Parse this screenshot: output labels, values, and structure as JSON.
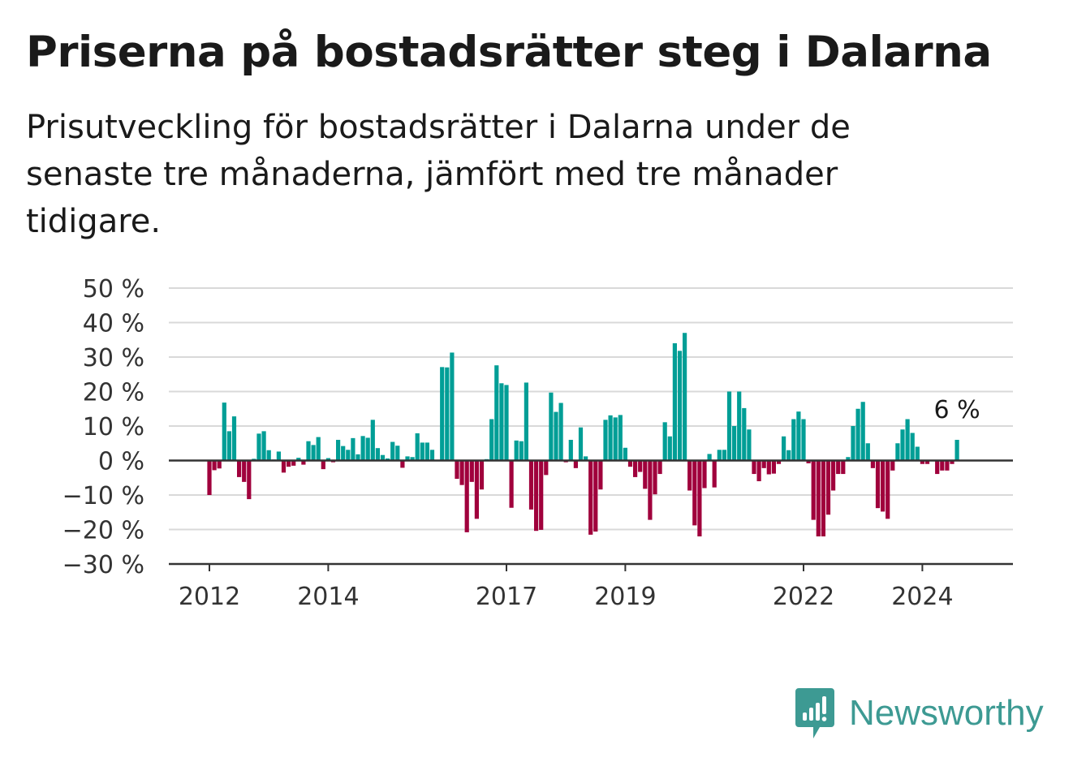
{
  "header": {
    "title": "Priserna på bostadsrätter steg i Dalarna",
    "subtitle": "Prisutveckling för bostadsrätter i Dalarna under de senaste tre månaderna, jämfört med tre månader tidigare."
  },
  "brand": {
    "name": "Newsworthy",
    "icon": "newsworthy-logo-icon",
    "color": "#3d9a93"
  },
  "colors": {
    "positive": "#009e96",
    "negative": "#a0003c",
    "grid": "#d9d9d9",
    "axis": "#333333"
  },
  "chart_data": {
    "type": "bar",
    "ylim": [
      -30,
      50
    ],
    "y_ticks": [
      50,
      40,
      30,
      20,
      10,
      0,
      -10,
      -20,
      -30
    ],
    "y_tick_labels": [
      "50 %",
      "40 %",
      "30 %",
      "20 %",
      "10 %",
      "0 %",
      "−10 %",
      "−20 %",
      "−30 %"
    ],
    "x_tick_labels": [
      "2012",
      "2014",
      "2017",
      "2019",
      "2022",
      "2024"
    ],
    "x_tick_index": [
      0,
      24,
      60,
      84,
      120,
      144
    ],
    "grid": true,
    "last_value_label": "6 %",
    "values": [
      -10,
      -2.8,
      -2.3,
      16.8,
      8.5,
      12.8,
      -4.8,
      -6.2,
      -11.2,
      0.5,
      7.8,
      8.5,
      3.0,
      0.3,
      2.6,
      -3.5,
      -1.8,
      -1.5,
      0.8,
      -1.2,
      5.6,
      4.5,
      6.8,
      -2.5,
      0.7,
      -0.5,
      6.0,
      4.2,
      3.1,
      6.5,
      1.8,
      7.1,
      6.6,
      11.8,
      3.6,
      1.6,
      0.6,
      5.4,
      4.3,
      -2.1,
      1.2,
      1.0,
      7.9,
      5.2,
      5.2,
      3.1,
      0.2,
      27.1,
      27.0,
      31.3,
      -5.3,
      -7.1,
      -20.8,
      -6.2,
      -16.9,
      -8.4,
      0.4,
      12.0,
      27.6,
      22.4,
      21.9,
      -13.7,
      5.8,
      5.6,
      22.6,
      -14.2,
      -20.4,
      -20.1,
      -4.2,
      19.7,
      14.1,
      16.7,
      -0.5,
      6.0,
      -2.2,
      9.6,
      1.2,
      -21.5,
      -20.6,
      -8.4,
      11.8,
      13.1,
      12.5,
      13.2,
      3.7,
      -1.8,
      -4.8,
      -3.3,
      -8.2,
      -17.2,
      -9.8,
      -3.9,
      11.1,
      7.0,
      34.0,
      31.8,
      37.0,
      -8.7,
      -18.8,
      -22.0,
      -8.0,
      1.9,
      -7.8,
      3.1,
      3.1,
      20.0,
      10.0,
      20.0,
      15.2,
      9.0,
      -3.9,
      -6.0,
      -2.2,
      -4.0,
      -3.8,
      -1.0,
      7.0,
      3.0,
      12.0,
      14.2,
      12.0,
      -0.8,
      -17.2,
      -22.0,
      -22.0,
      -15.7,
      -8.7,
      -3.9,
      -3.9,
      1.0,
      10.0,
      15.0,
      17.0,
      5.0,
      -2.2,
      -13.8,
      -14.8,
      -16.9,
      -2.9,
      5.0,
      9.0,
      12.0,
      8.0,
      4.0,
      -1.0,
      -1.0,
      0.1,
      -3.9,
      -2.9,
      -2.9,
      -1.0,
      6.0
    ]
  }
}
